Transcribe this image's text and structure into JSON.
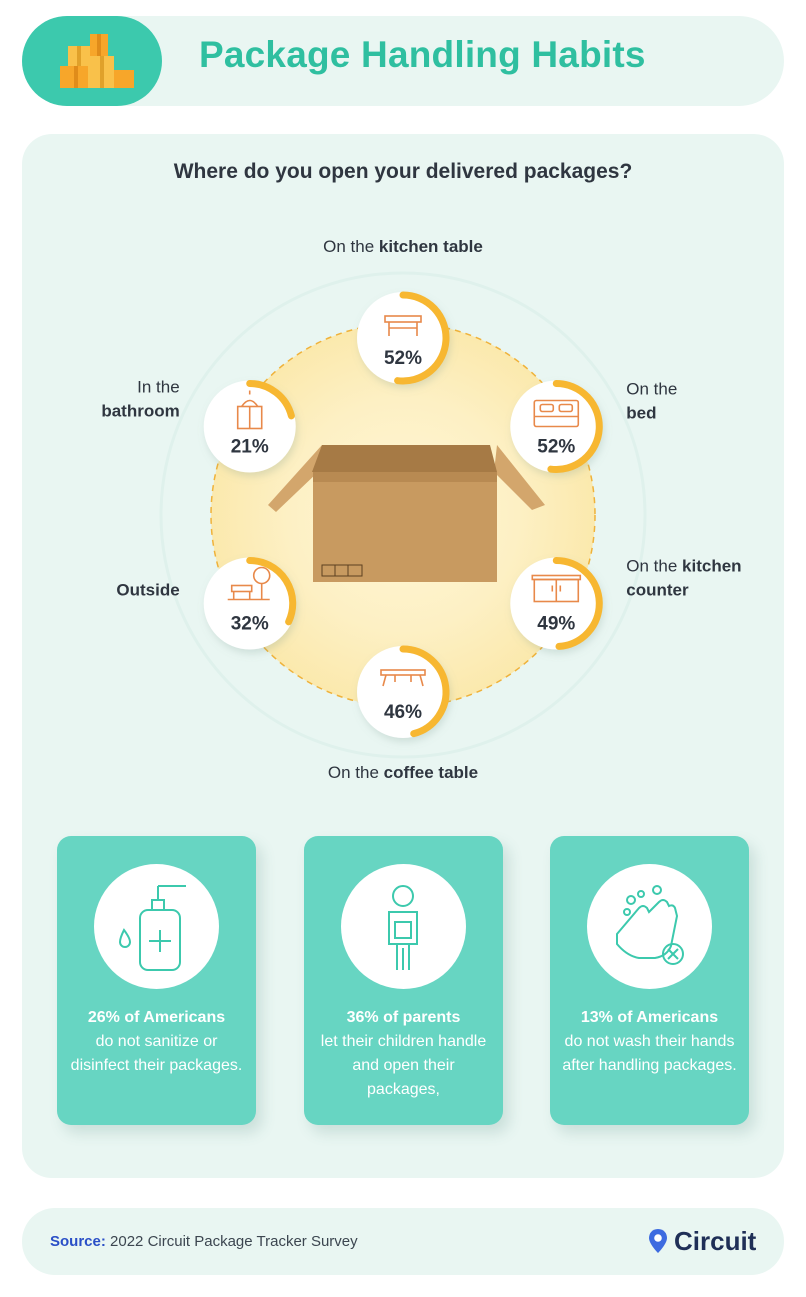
{
  "header": {
    "title": "Package Handling Habits"
  },
  "colors": {
    "accent": "#f7b731",
    "teal": "#3cc9ad",
    "card": "#67d5c2",
    "icon": "#e8894a",
    "text": "#2f3640"
  },
  "chart_data": {
    "type": "radial",
    "title": "Where do you open your delivered packages?",
    "items": [
      {
        "label_pre": "On the ",
        "label_bold": "kitchen table",
        "label_post": "",
        "value": 52,
        "display": "52%",
        "icon": "table-icon"
      },
      {
        "label_pre": "On the ",
        "label_bold": "bed",
        "label_post": "",
        "value": 52,
        "display": "52%",
        "icon": "bed-icon"
      },
      {
        "label_pre": "On the ",
        "label_bold": "kitchen",
        "label_post": " counter",
        "value": 49,
        "display": "49%",
        "icon": "counter-icon"
      },
      {
        "label_pre": "On the ",
        "label_bold": "coffee table",
        "label_post": "",
        "value": 46,
        "display": "46%",
        "icon": "coffee-table-icon"
      },
      {
        "label_pre": "",
        "label_bold": "Outside",
        "label_post": "",
        "value": 32,
        "display": "32%",
        "icon": "outdoor-icon"
      },
      {
        "label_pre": "In the ",
        "label_bold": "bathroom",
        "label_post": "",
        "value": 21,
        "display": "21%",
        "icon": "vanity-icon"
      }
    ]
  },
  "stats": [
    {
      "bold": "26% of Americans",
      "text": "do not sanitize or disinfect their packages.",
      "icon": "sanitizer-icon"
    },
    {
      "bold": "36% of parents",
      "text": "let their children handle and open their packages,",
      "icon": "child-icon"
    },
    {
      "bold": "13% of Americans",
      "text": "do not wash their hands after handling packages.",
      "icon": "hand-wash-icon"
    }
  ],
  "footer": {
    "source_label": "Source:",
    "source_text": "2022 Circuit Package Tracker Survey",
    "brand": "Circuit"
  }
}
